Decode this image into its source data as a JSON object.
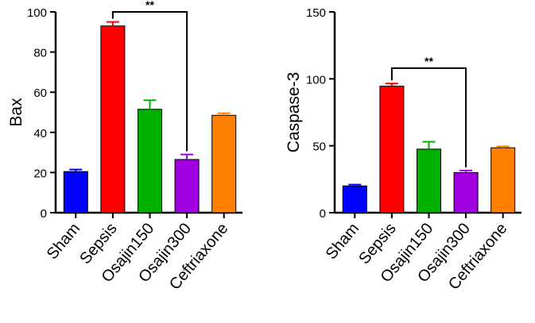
{
  "chart_data": [
    {
      "type": "bar",
      "ylabel": "Bax",
      "ylim": [
        0,
        100
      ],
      "yticks": [
        0,
        20,
        40,
        60,
        80,
        100
      ],
      "categories": [
        "Sham",
        "Sepsis",
        "Osajin150",
        "Osajin300",
        "Ceftriaxone"
      ],
      "values": [
        20.5,
        93,
        51.5,
        26.5,
        48.5
      ],
      "errors": [
        1,
        2,
        4.5,
        2.5,
        1
      ],
      "colors": [
        "#0000ff",
        "#ff0000",
        "#00b000",
        "#a000e0",
        "#ff8000"
      ],
      "significance": {
        "from": "Sepsis",
        "to": "Osajin300",
        "label": "**",
        "y": 100
      }
    },
    {
      "type": "bar",
      "ylabel": "Caspase-3",
      "ylim": [
        0,
        150
      ],
      "yticks": [
        0,
        50,
        100,
        150
      ],
      "categories": [
        "Sham",
        "Sepsis",
        "Osajin150",
        "Osajin300",
        "Ceftriaxone"
      ],
      "values": [
        20,
        94.5,
        47.5,
        30,
        48.5
      ],
      "errors": [
        1,
        2,
        5.5,
        1.5,
        1
      ],
      "colors": [
        "#0000ff",
        "#ff0000",
        "#00b000",
        "#a000e0",
        "#ff8000"
      ],
      "significance": {
        "from": "Sepsis",
        "to": "Osajin300",
        "label": "**",
        "y": 108
      }
    }
  ]
}
